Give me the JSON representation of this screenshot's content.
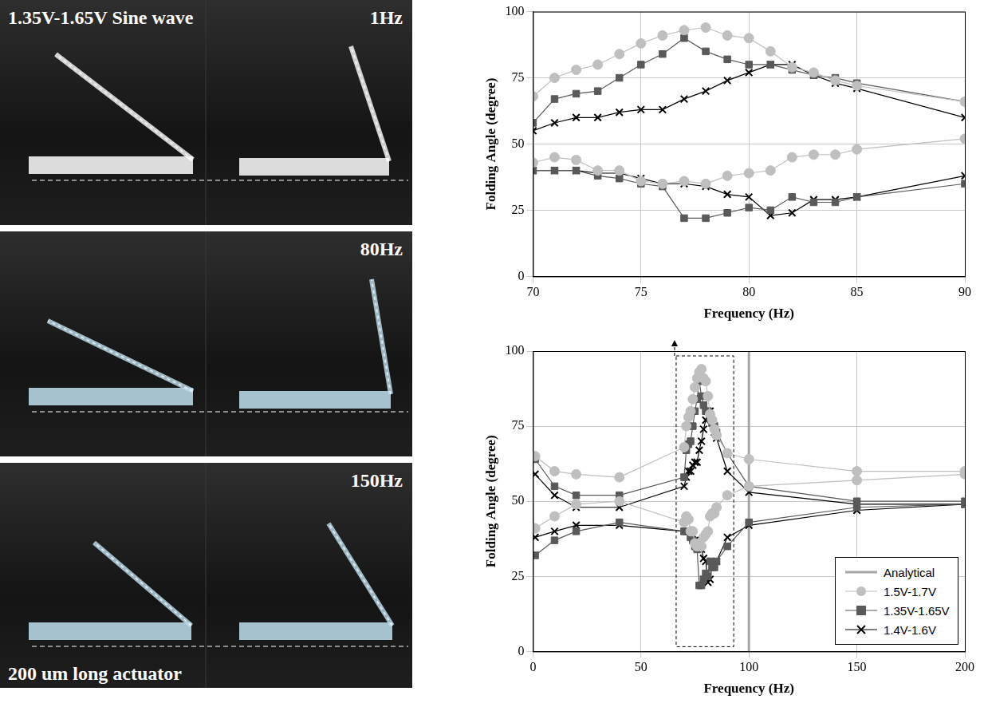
{
  "panels": [
    {
      "title": "1.35V-1.65V Sine wave",
      "frequency": "1Hz"
    },
    {
      "frequency": "80Hz"
    },
    {
      "frequency": "150Hz",
      "caption": "200 um long actuator"
    }
  ],
  "chart_data": [
    {
      "type": "line",
      "x_label": "Frequency (Hz)",
      "y_label": "Folding Angle (degree)",
      "xlim": [
        70,
        90
      ],
      "xticks": [
        70,
        75,
        80,
        85,
        90
      ],
      "ylim": [
        0,
        100
      ],
      "yticks": [
        0,
        25,
        50,
        75,
        100
      ],
      "grid": true,
      "series": [
        {
          "color": "#bfbfbf",
          "marker": "circle",
          "x": [
            70,
            71,
            72,
            73,
            74,
            75,
            76,
            77,
            78,
            79,
            80,
            81,
            82,
            83,
            84,
            85,
            90
          ],
          "max": [
            68,
            75,
            78,
            80,
            84,
            88,
            91,
            93,
            94,
            91,
            90,
            85,
            79,
            77,
            74,
            72,
            66
          ],
          "min": [
            43,
            45,
            44,
            40,
            40,
            36,
            35,
            36,
            35,
            38,
            39,
            40,
            45,
            46,
            46,
            48,
            52
          ]
        },
        {
          "color": "#595959",
          "marker": "square",
          "x": [
            70,
            71,
            72,
            73,
            74,
            75,
            76,
            77,
            78,
            79,
            80,
            81,
            82,
            83,
            84,
            85,
            90
          ],
          "max": [
            58,
            67,
            69,
            70,
            75,
            80,
            84,
            90,
            85,
            82,
            80,
            80,
            78,
            76,
            75,
            73,
            66
          ],
          "min": [
            40,
            40,
            40,
            38,
            37,
            35,
            34,
            22,
            22,
            24,
            26,
            25,
            30,
            28,
            28,
            30,
            35
          ]
        },
        {
          "color": "#000000",
          "marker": "x",
          "x": [
            70,
            71,
            72,
            73,
            74,
            75,
            76,
            77,
            78,
            79,
            80,
            81,
            82,
            83,
            84,
            85,
            90
          ],
          "max": [
            55,
            58,
            60,
            60,
            62,
            63,
            63,
            67,
            70,
            74,
            77,
            80,
            80,
            76,
            73,
            71,
            60
          ],
          "min": [
            40,
            40,
            40,
            39,
            39,
            37,
            35,
            35,
            34,
            31,
            30,
            23,
            24,
            29,
            29,
            30,
            38
          ]
        }
      ]
    },
    {
      "type": "line",
      "x_label": "Frequency (Hz)",
      "y_label": "Folding Angle (degree)",
      "xlim": [
        0,
        200
      ],
      "xticks": [
        0,
        50,
        100,
        150,
        200
      ],
      "ylim": [
        0,
        100
      ],
      "yticks": [
        0,
        25,
        50,
        75,
        100
      ],
      "grid": true,
      "legend": "bottom right",
      "series": [
        {
          "name": "Analytical",
          "type": "vline",
          "color": "#a6a6a6",
          "x": 100
        },
        {
          "name": "1.5V-1.7V",
          "color": "#bfbfbf",
          "marker": "circle",
          "x": [
            1,
            10,
            20,
            40,
            70,
            71,
            72,
            73,
            74,
            75,
            76,
            77,
            78,
            79,
            80,
            81,
            82,
            83,
            84,
            85,
            90,
            100,
            150,
            200
          ],
          "max": [
            65,
            60,
            59,
            58,
            68,
            75,
            78,
            80,
            84,
            88,
            91,
            93,
            94,
            91,
            90,
            85,
            79,
            77,
            74,
            72,
            66,
            64,
            60,
            60
          ],
          "min": [
            41,
            45,
            49,
            50,
            43,
            45,
            44,
            40,
            40,
            36,
            35,
            36,
            35,
            38,
            39,
            40,
            45,
            46,
            46,
            48,
            52,
            55,
            57,
            59
          ]
        },
        {
          "name": "1.35V-1.65V",
          "color": "#595959",
          "marker": "square",
          "x": [
            1,
            10,
            20,
            40,
            70,
            71,
            72,
            73,
            74,
            75,
            76,
            77,
            78,
            79,
            80,
            81,
            82,
            83,
            84,
            85,
            90,
            100,
            150,
            200
          ],
          "max": [
            64,
            55,
            52,
            52,
            58,
            67,
            69,
            70,
            75,
            80,
            84,
            90,
            85,
            82,
            80,
            80,
            78,
            76,
            75,
            73,
            66,
            55,
            50,
            50
          ],
          "min": [
            32,
            37,
            40,
            43,
            40,
            40,
            40,
            38,
            37,
            35,
            34,
            22,
            22,
            24,
            26,
            25,
            30,
            28,
            28,
            30,
            35,
            43,
            48,
            49
          ]
        },
        {
          "name": "1.4V-1.6V",
          "color": "#000000",
          "marker": "x",
          "x": [
            1,
            10,
            20,
            40,
            70,
            71,
            72,
            73,
            74,
            75,
            76,
            77,
            78,
            79,
            80,
            81,
            82,
            83,
            84,
            85,
            90,
            100,
            150,
            200
          ],
          "max": [
            59,
            52,
            48,
            48,
            55,
            58,
            60,
            60,
            62,
            63,
            63,
            67,
            70,
            74,
            77,
            80,
            80,
            76,
            73,
            71,
            60,
            53,
            49,
            49
          ],
          "min": [
            38,
            40,
            42,
            42,
            40,
            40,
            40,
            39,
            39,
            37,
            35,
            35,
            34,
            31,
            30,
            23,
            24,
            29,
            29,
            30,
            38,
            42,
            47,
            49
          ]
        }
      ]
    }
  ]
}
